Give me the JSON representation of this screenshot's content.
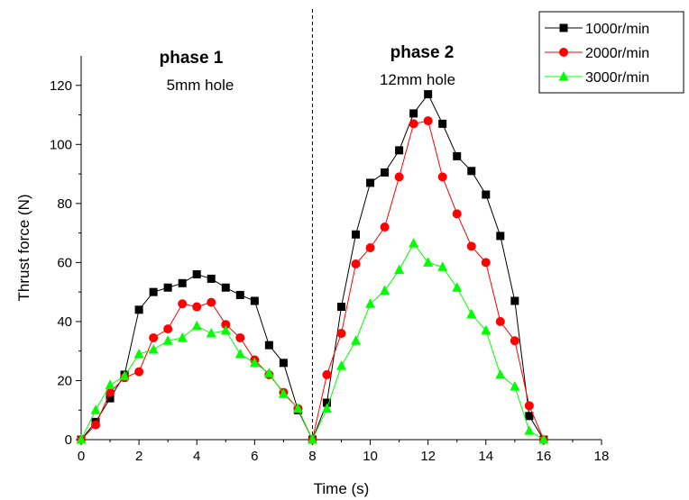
{
  "chart_data": {
    "type": "line",
    "xlabel": "Time (s)",
    "ylabel": "Thrust force (N)",
    "xlim": [
      0,
      18
    ],
    "ylim": [
      0,
      130
    ],
    "x_ticks": [
      0,
      2,
      4,
      6,
      8,
      10,
      12,
      14,
      16,
      18
    ],
    "y_ticks": [
      0,
      20,
      40,
      60,
      80,
      100,
      120
    ],
    "grid": false,
    "legend_position": "top-right",
    "divider_x": 8,
    "annotations": [
      {
        "id": "phase1",
        "title": "phase 1",
        "subtitle": "5mm hole"
      },
      {
        "id": "phase2",
        "title": "phase 2",
        "subtitle": "12mm hole"
      }
    ],
    "series": [
      {
        "name": "1000r/min",
        "color": "#000000",
        "marker": "square",
        "x": [
          0,
          0.5,
          1,
          1.5,
          2,
          2.5,
          3,
          3.5,
          4,
          4.5,
          5,
          5.5,
          6,
          6.5,
          7,
          7.5,
          8,
          8.5,
          9,
          9.5,
          10,
          10.5,
          11,
          11.5,
          12,
          12.5,
          13,
          13.5,
          14,
          14.5,
          15,
          15.5,
          16
        ],
        "values": [
          0,
          6,
          14,
          22,
          44,
          50,
          51.5,
          53,
          56,
          54.5,
          51.5,
          49,
          47,
          32,
          26,
          10,
          0,
          12.5,
          45,
          69.5,
          87,
          90.5,
          98,
          110.5,
          117,
          107,
          96,
          91,
          83,
          69,
          47,
          8,
          0
        ]
      },
      {
        "name": "2000r/min",
        "color": "#ff0000",
        "marker": "circle",
        "x": [
          0,
          0.5,
          1,
          1.5,
          2,
          2.5,
          3,
          3.5,
          4,
          4.5,
          5,
          5.5,
          6,
          6.5,
          7,
          7.5,
          8,
          8.5,
          9,
          9.5,
          10,
          10.5,
          11,
          11.5,
          12,
          12.5,
          13,
          13.5,
          14,
          14.5,
          15,
          15.5,
          16
        ],
        "values": [
          0,
          5,
          16,
          21,
          23,
          34.5,
          37.5,
          46,
          45,
          46.5,
          39,
          34.5,
          27,
          22,
          16,
          10.5,
          0,
          22,
          36,
          59.5,
          65,
          72,
          89,
          107,
          108,
          89,
          76.5,
          65.5,
          60,
          40,
          33.5,
          11.5,
          0
        ]
      },
      {
        "name": "3000r/min",
        "color": "#00ff00",
        "marker": "triangle",
        "x": [
          0,
          0.5,
          1,
          1.5,
          2,
          2.5,
          3,
          3.5,
          4,
          4.5,
          5,
          5.5,
          6,
          6.5,
          7,
          7.5,
          8,
          8.5,
          9,
          9.5,
          10,
          10.5,
          11,
          11.5,
          12,
          12.5,
          13,
          13.5,
          14,
          14.5,
          15,
          15.5,
          16
        ],
        "values": [
          0,
          10,
          18.5,
          21.5,
          29,
          30.5,
          33.5,
          34.5,
          38.5,
          36,
          37,
          29,
          26,
          22.5,
          15.5,
          10.5,
          0,
          10.5,
          25,
          33.5,
          46,
          50.5,
          57.5,
          66.5,
          60,
          58.5,
          51.5,
          42.5,
          37,
          22,
          18,
          3,
          0
        ]
      }
    ]
  }
}
